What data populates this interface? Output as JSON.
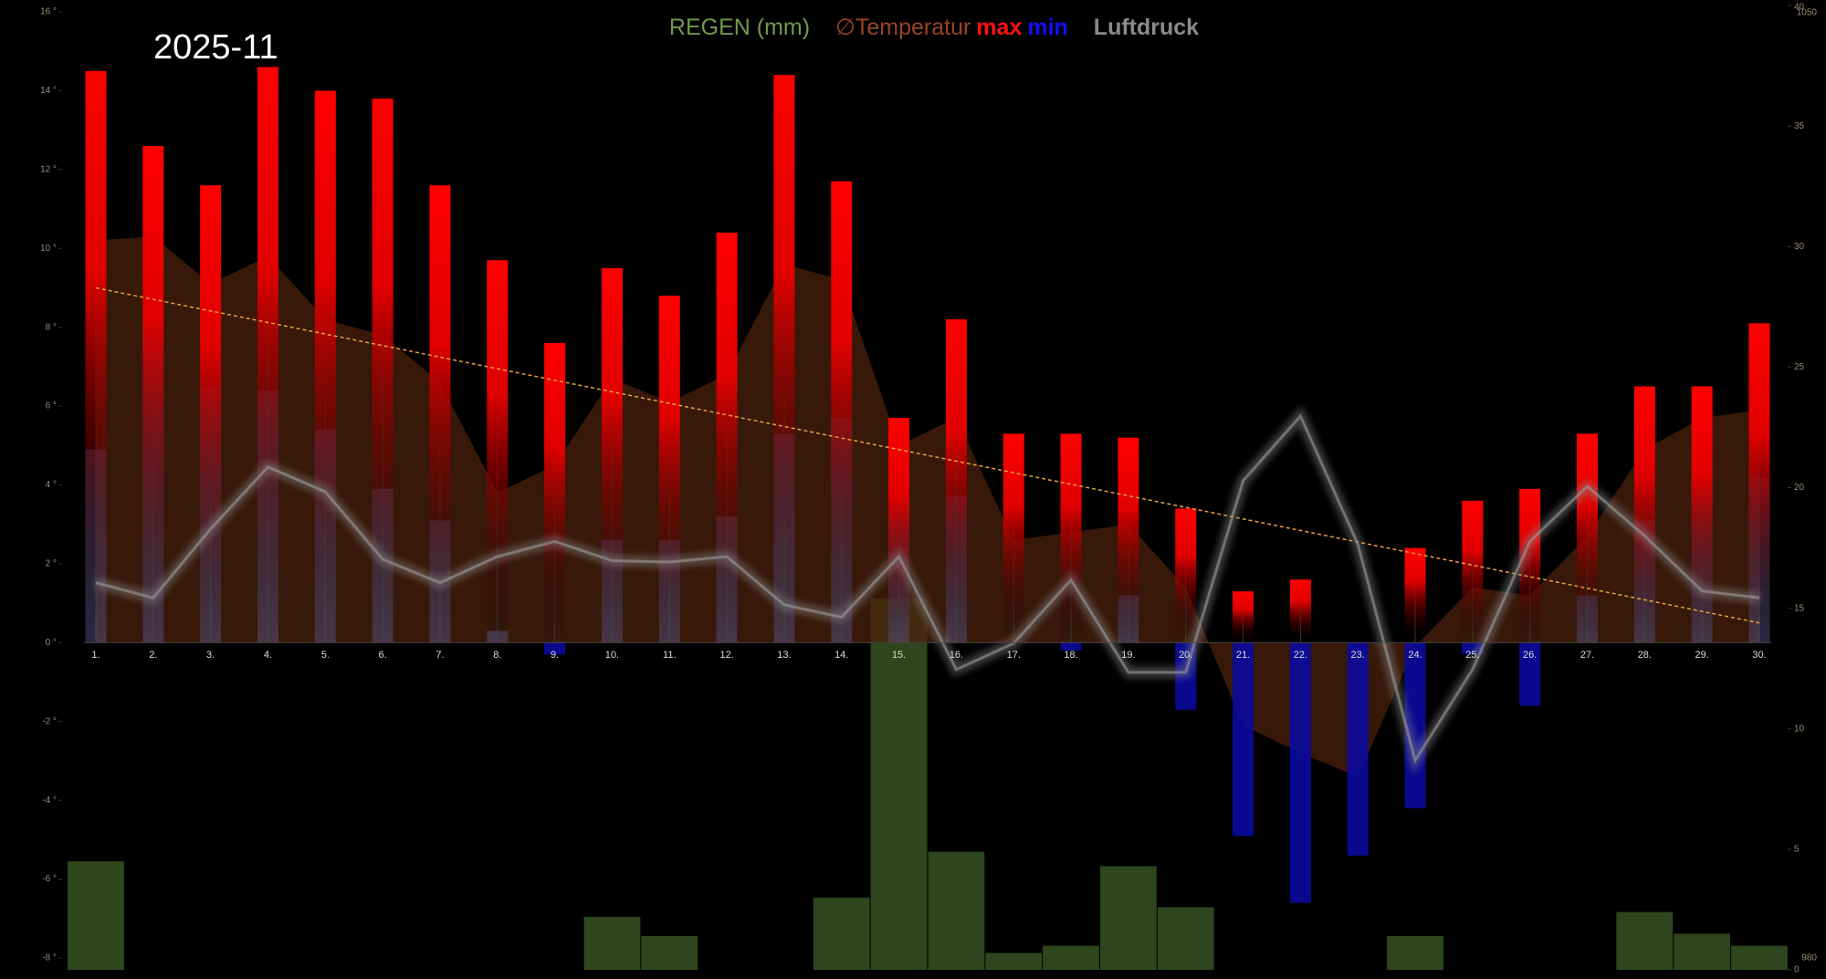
{
  "chart_data": {
    "type": "combo",
    "title": "2025-11",
    "categories": [
      "1.",
      "2.",
      "3.",
      "4.",
      "5.",
      "6.",
      "7.",
      "8.",
      "9.",
      "10.",
      "11.",
      "12.",
      "13.",
      "14.",
      "15.",
      "16.",
      "17.",
      "18.",
      "19.",
      "20.",
      "21.",
      "22.",
      "23.",
      "24.",
      "25.",
      "26.",
      "27.",
      "28.",
      "29.",
      "30."
    ],
    "series": [
      {
        "name": "REGEN (mm)",
        "color": "#2f4a1f",
        "axis": "y2",
        "values": [
          4.5,
          0,
          0,
          0,
          0,
          0,
          0,
          0,
          0,
          2.2,
          1.4,
          0,
          0,
          3.0,
          15.4,
          4.9,
          0.7,
          1.0,
          4.3,
          2.6,
          0,
          0,
          0,
          1.4,
          0,
          0,
          0,
          2.4,
          1.5,
          1.0
        ]
      },
      {
        "name": "∅Temperatur",
        "color": "#4a200c",
        "values": [
          10.2,
          10.3,
          9.1,
          9.8,
          8.2,
          7.8,
          6.6,
          3.8,
          4.5,
          6.7,
          6.1,
          6.8,
          9.6,
          9.2,
          5.0,
          5.7,
          2.6,
          2.8,
          3.0,
          1.4,
          -2.1,
          -2.8,
          -3.4,
          -0.1,
          1.4,
          1.2,
          2.7,
          4.9,
          5.7,
          5.9
        ]
      },
      {
        "name": "max",
        "color": "#ff0000",
        "values": [
          14.5,
          12.6,
          11.6,
          14.6,
          14.0,
          13.8,
          11.6,
          9.7,
          7.6,
          9.5,
          8.8,
          10.4,
          14.4,
          11.7,
          5.7,
          8.2,
          5.3,
          5.3,
          5.2,
          3.4,
          1.3,
          1.6,
          0.0,
          2.4,
          3.6,
          3.9,
          5.3,
          6.5,
          6.5,
          8.1
        ]
      },
      {
        "name": "min",
        "color": "#0a0aa0",
        "values": [
          4.9,
          8.3,
          6.5,
          6.4,
          5.4,
          3.9,
          3.1,
          0.3,
          -0.3,
          2.6,
          2.6,
          3.2,
          5.3,
          5.7,
          4.3,
          3.7,
          0.0,
          -0.2,
          1.2,
          -1.7,
          -4.9,
          -6.6,
          -5.4,
          -4.2,
          -0.3,
          -1.6,
          1.2,
          3.1,
          4.6,
          4.2
        ]
      },
      {
        "name": "Luftdruck",
        "color": "#8a8a8a",
        "axis": "y3",
        "values": [
          1008.1,
          1007.0,
          1012.0,
          1016.5,
          1014.7,
          1009.8,
          1008.1,
          1010.0,
          1011.1,
          1009.7,
          1009.6,
          1010.0,
          1006.5,
          1005.6,
          1010.0,
          1001.8,
          1003.7,
          1008.3,
          1001.6,
          1001.6,
          1015.5,
          1020.2,
          1010.9,
          995.2,
          1001.8,
          1011.1,
          1015.1,
          1011.5,
          1007.5,
          1007.0
        ]
      }
    ],
    "trend": {
      "color": "#e8a040",
      "values": [
        9.0,
        0.5
      ]
    },
    "ylim": [
      -8,
      16
    ],
    "yticks": [
      {
        "value": -8,
        "label": "-8 °"
      },
      {
        "value": -6,
        "label": "-6 °"
      },
      {
        "value": -4,
        "label": "-4 °"
      },
      {
        "value": -2,
        "label": "-2 °"
      },
      {
        "value": 0,
        "label": "0 °"
      },
      {
        "value": 2,
        "label": "2 °"
      },
      {
        "value": 4,
        "label": "4 °"
      },
      {
        "value": 6,
        "label": "6 °"
      },
      {
        "value": 8,
        "label": "8 °"
      },
      {
        "value": 10,
        "label": "10 °"
      },
      {
        "value": 12,
        "label": "12 °"
      },
      {
        "value": 14,
        "label": "14 °"
      },
      {
        "value": 16,
        "label": "16 °"
      }
    ],
    "y2lim": [
      0,
      40
    ],
    "y2ticks": [
      0,
      5,
      10,
      15,
      20,
      25,
      30,
      35,
      40
    ],
    "y3lim": [
      980,
      1050
    ],
    "y3ticks": [
      980,
      1050
    ]
  }
}
